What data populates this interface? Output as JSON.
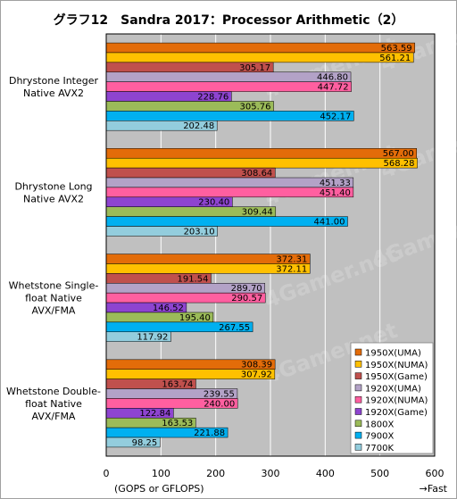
{
  "chart_data": {
    "type": "bar",
    "orientation": "horizontal",
    "title": "グラフ12　Sandra 2017：Processor Arithmetic（2）",
    "xlabel": "(GOPS or GFLOPS)",
    "x_direction_label": "→Fast",
    "xlim": [
      0,
      600
    ],
    "xticks": [
      0,
      100,
      200,
      300,
      400,
      500,
      600
    ],
    "grid": true,
    "legend_position": "bottom-right",
    "watermark": "4Gamer.net",
    "categories": [
      [
        "Dhrystone Integer",
        "Native AVX2"
      ],
      [
        "Dhrystone Long",
        "Native AVX2"
      ],
      [
        "Whetstone Single-",
        "float Native",
        "AVX/FMA"
      ],
      [
        "Whetstone Double-",
        "float Native",
        "AVX/FMA"
      ]
    ],
    "series": [
      {
        "name": "1950X(UMA)",
        "color": "#e36c09",
        "values": [
          563.59,
          567.0,
          372.31,
          308.39
        ]
      },
      {
        "name": "1950X(NUMA)",
        "color": "#ffc000",
        "values": [
          561.21,
          568.28,
          372.11,
          307.92
        ]
      },
      {
        "name": "1950X(Game)",
        "color": "#c0504d",
        "values": [
          305.17,
          308.64,
          191.54,
          163.74
        ]
      },
      {
        "name": "1920X(UMA)",
        "color": "#b3a2c7",
        "values": [
          446.8,
          451.33,
          289.7,
          239.55
        ]
      },
      {
        "name": "1920X(NUMA)",
        "color": "#ff5fa0",
        "values": [
          447.72,
          451.4,
          290.57,
          240.0
        ]
      },
      {
        "name": "1920X(Game)",
        "color": "#8e44d0",
        "values": [
          228.76,
          230.4,
          146.52,
          122.84
        ]
      },
      {
        "name": "1800X",
        "color": "#9bbb59",
        "values": [
          305.76,
          309.44,
          195.4,
          163.53
        ]
      },
      {
        "name": "7900X",
        "color": "#00b0f0",
        "values": [
          452.17,
          441.0,
          267.55,
          221.88
        ]
      },
      {
        "name": "7700K",
        "color": "#93cddd",
        "values": [
          202.48,
          203.1,
          117.92,
          98.25
        ]
      }
    ]
  }
}
